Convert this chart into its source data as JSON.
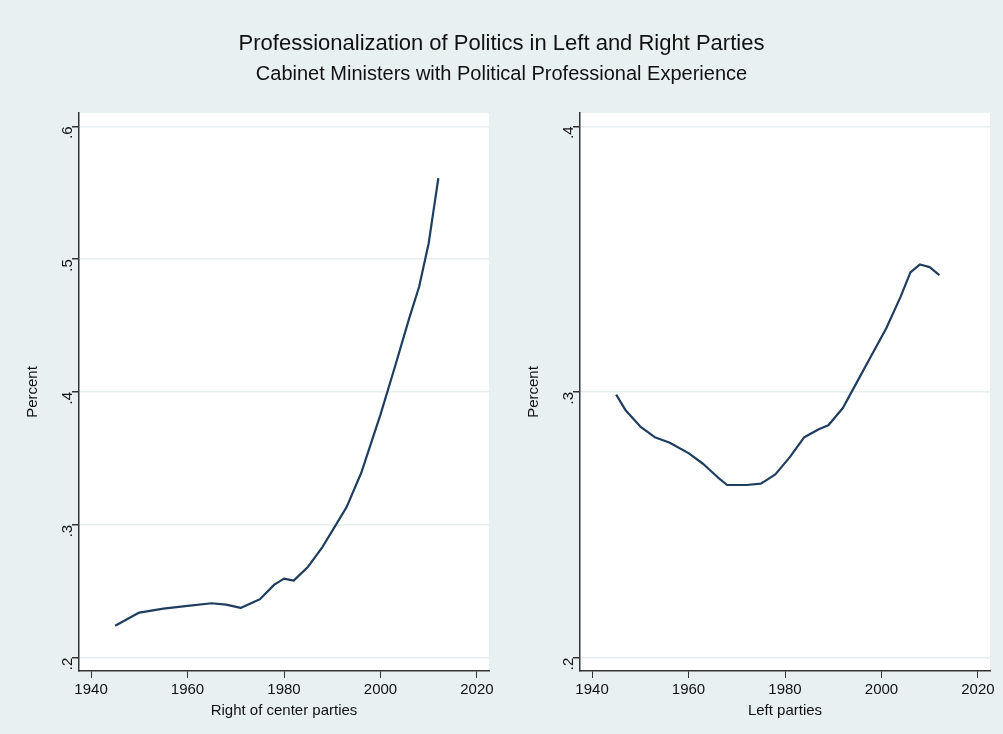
{
  "chart_data": [
    {
      "type": "line",
      "title": "Professionalization of Politics in Left and Right Parties",
      "subtitle": "Cabinet Ministers with Political Professional Experience",
      "xlabel": "Right of center parties",
      "ylabel": "Percent",
      "grid": "y",
      "legend": false,
      "x": [
        1945,
        1950,
        1955,
        1960,
        1965,
        1968,
        1971,
        1975,
        1978,
        1980,
        1982,
        1985,
        1988,
        1990,
        1993,
        1996,
        2000,
        2003,
        2006,
        2008,
        2010,
        2012
      ],
      "series": [
        {
          "color": "#1f3d5e",
          "values": [
            0.224,
            0.234,
            0.237,
            0.239,
            0.241,
            0.24,
            0.2375,
            0.244,
            0.255,
            0.2595,
            0.258,
            0.2685,
            0.2835,
            0.2955,
            0.3135,
            0.339,
            0.383,
            0.419,
            0.456,
            0.479,
            0.512,
            0.561
          ]
        }
      ],
      "xlim": [
        1937.5,
        2022.5
      ],
      "xticks": [
        1940,
        1960,
        1980,
        2000,
        2020
      ],
      "ylim": [
        0.19,
        0.61
      ],
      "yticks": [
        {
          "value": 0.2,
          "label": ".2"
        },
        {
          "value": 0.3,
          "label": ".3"
        },
        {
          "value": 0.4,
          "label": ".4"
        },
        {
          "value": 0.5,
          "label": ".5"
        },
        {
          "value": 0.6,
          "label": ".6"
        }
      ]
    },
    {
      "type": "line",
      "xlabel": "Left parties",
      "ylabel": "Percent",
      "grid": "y",
      "legend": false,
      "x": [
        1945,
        1947,
        1950,
        1953,
        1956,
        1960,
        1963,
        1966,
        1968,
        1972,
        1975,
        1978,
        1981,
        1984,
        1987,
        1989,
        1992,
        1995,
        1998,
        2001,
        2004,
        2006,
        2008,
        2010,
        2012
      ],
      "series": [
        {
          "color": "#1f3d5e",
          "values": [
            0.299,
            0.293,
            0.287,
            0.283,
            0.281,
            0.277,
            0.273,
            0.268,
            0.265,
            0.265,
            0.2655,
            0.269,
            0.2755,
            0.283,
            0.286,
            0.2875,
            0.294,
            0.304,
            0.314,
            0.324,
            0.336,
            0.345,
            0.348,
            0.347,
            0.344
          ]
        }
      ],
      "xlim": [
        1937.5,
        2022.5
      ],
      "xticks": [
        1940,
        1960,
        1980,
        2000,
        2020
      ],
      "ylim": [
        0.195,
        0.405
      ],
      "yticks": [
        {
          "value": 0.2,
          "label": ".2"
        },
        {
          "value": 0.3,
          "label": ".3"
        },
        {
          "value": 0.4,
          "label": ".4"
        }
      ]
    }
  ]
}
